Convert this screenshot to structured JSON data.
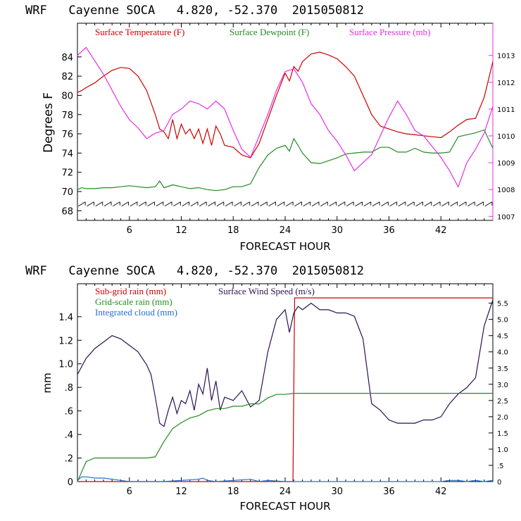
{
  "chart_data": [
    {
      "type": "line",
      "title": "WRF   Cayenne SOCA   4.820, -52.370  2015050812",
      "xlabel": "FORECAST HOUR",
      "ylabel": "Degrees F",
      "y2label": "",
      "xlim": [
        0,
        48
      ],
      "ylim": [
        67,
        87.5
      ],
      "y2lim": [
        1006.85,
        1014.2
      ],
      "xticks": [
        6,
        12,
        18,
        24,
        30,
        36,
        42
      ],
      "yticks": [
        68,
        70,
        72,
        74,
        76,
        78,
        80,
        82,
        84
      ],
      "y2ticks": [
        1007,
        1008,
        1009,
        1010,
        1011,
        1012,
        1013
      ],
      "legend": [
        "Surface Temperature (F)",
        "Surface Dewpoint (F)",
        "Surface Pressure (mb)"
      ],
      "wind_barbs": "row of wind barbs along 68.7 F",
      "colors": {
        "temperature": "#cc0000",
        "dewpoint": "#228b22",
        "pressure": "#e62ee6",
        "barbs": "#000000"
      },
      "series": [
        {
          "name": "Surface Temperature (F)",
          "axis": "left",
          "x": [
            0,
            0.5,
            1,
            2,
            3,
            4,
            5,
            6,
            7,
            8,
            9,
            9.5,
            10,
            10.5,
            11,
            11.5,
            12,
            12.5,
            13,
            13.5,
            14,
            14.5,
            15,
            15.5,
            16,
            16.5,
            17,
            18,
            19,
            20,
            21,
            22,
            23,
            24,
            24.5,
            25,
            25.5,
            26,
            27,
            28,
            29,
            30,
            31,
            32,
            33,
            34,
            35,
            36,
            37,
            38,
            39,
            40,
            41,
            42,
            43,
            44,
            45,
            46,
            47,
            48
          ],
          "values": [
            80.3,
            80.5,
            80.8,
            81.3,
            82,
            82.6,
            82.9,
            82.8,
            82,
            80.5,
            78,
            76.5,
            76.2,
            75.5,
            77.5,
            75.5,
            77,
            76,
            76.5,
            75.5,
            76.5,
            75,
            76.5,
            74.8,
            76.8,
            76,
            74.8,
            74.6,
            73.8,
            73.5,
            75,
            77.5,
            80,
            82.3,
            81.5,
            83,
            82.5,
            83.5,
            84.3,
            84.5,
            84.2,
            83.8,
            83,
            82,
            80,
            78,
            76.8,
            76.5,
            76.2,
            76,
            75.9,
            75.8,
            75.7,
            75.6,
            76.2,
            76.9,
            77.5,
            77.6,
            79.8,
            83.5
          ]
        },
        {
          "name": "Surface Dewpoint (F)",
          "axis": "left",
          "x": [
            0,
            0.5,
            1,
            2,
            3,
            4,
            5,
            6,
            7,
            8,
            9,
            9.5,
            10,
            11,
            12,
            13,
            14,
            15,
            16,
            17,
            18,
            19,
            20,
            21,
            22,
            23,
            24,
            24.5,
            25,
            25.5,
            26,
            27,
            28,
            29,
            30,
            31,
            32,
            33,
            34,
            35,
            36,
            37,
            38,
            39,
            40,
            41,
            42,
            43,
            44,
            45,
            46,
            47,
            48
          ],
          "values": [
            70.2,
            70.4,
            70.3,
            70.3,
            70.4,
            70.4,
            70.5,
            70.6,
            70.5,
            70.4,
            70.5,
            71.1,
            70.4,
            70.7,
            70.5,
            70.3,
            70.4,
            70.2,
            70.1,
            70.2,
            70.5,
            70.5,
            70.8,
            72.5,
            73.8,
            74.5,
            74.8,
            74.2,
            75.5,
            74.8,
            74,
            73,
            72.9,
            73.2,
            73.5,
            73.9,
            74,
            74.1,
            74.1,
            74.6,
            74.6,
            74.1,
            74.1,
            74.5,
            74.1,
            74,
            74,
            74.1,
            75.7,
            75.9,
            76.1,
            76.4,
            74.5
          ]
        },
        {
          "name": "Surface Pressure (mb)",
          "axis": "right",
          "x": [
            0,
            1,
            2,
            3,
            4,
            5,
            6,
            7,
            8,
            9,
            10,
            11,
            12,
            13,
            14,
            15,
            16,
            17,
            18,
            19,
            20,
            21,
            22,
            23,
            24,
            25,
            26,
            27,
            28,
            29,
            30,
            31,
            32,
            33,
            34,
            35,
            36,
            37,
            38,
            39,
            40,
            41,
            42,
            43,
            44,
            45,
            46,
            47,
            48
          ],
          "values": [
            1013,
            1013.3,
            1012.8,
            1012.3,
            1011.7,
            1011.1,
            1010.6,
            1010.3,
            1009.9,
            1010.1,
            1010.2,
            1010.8,
            1011,
            1011.3,
            1011.2,
            1011,
            1011.3,
            1011,
            1010.2,
            1009.5,
            1009.2,
            1010,
            1010.8,
            1011.7,
            1012.4,
            1012.5,
            1012,
            1011.2,
            1010.8,
            1010.2,
            1009.8,
            1009.3,
            1008.7,
            1009,
            1009.3,
            1010,
            1010.7,
            1011.3,
            1010.8,
            1010.2,
            1010,
            1009.6,
            1009.2,
            1008.7,
            1008.1,
            1009,
            1009.5,
            1010.1,
            1011.1
          ]
        }
      ]
    },
    {
      "type": "line",
      "title": "WRF   Cayenne SOCA   4.820, -52.370  2015050812",
      "xlabel": "FORECAST HOUR",
      "ylabel": "mm",
      "y2label": "",
      "xlim": [
        0,
        48
      ],
      "ylim": [
        0,
        1.68
      ],
      "y2lim": [
        0,
        6.1
      ],
      "xticks": [
        6,
        12,
        18,
        24,
        30,
        36,
        42
      ],
      "yticks": [
        0,
        0.2,
        0.4,
        0.6,
        0.8,
        1.0,
        1.2,
        1.4
      ],
      "yticklabels": [
        "0",
        ".2",
        ".4",
        ".6",
        ".8",
        "1.0",
        "1.2",
        "1.4"
      ],
      "y2ticks": [
        0,
        0.5,
        1,
        1.5,
        2,
        2.5,
        3,
        3.5,
        4,
        4.5,
        5,
        5.5
      ],
      "y2ticklabels": [
        "0",
        ".5",
        "1.0",
        "1.5",
        "2.0",
        "2.5",
        "3.0",
        "3.5",
        "4.0",
        "4.5",
        "5.0",
        "5.5"
      ],
      "legend": [
        "Sub-grid rain (mm)",
        "Surface Wind Speed (m/s)",
        "Grid-scale rain (mm)",
        "Integrated cloud (mm)"
      ],
      "colors": {
        "subgrid": "#cc0000",
        "wind": "#2a1150",
        "gridscale": "#228b22",
        "cloud": "#1e6fd9"
      },
      "series": [
        {
          "name": "Sub-grid rain (mm)",
          "axis": "left",
          "x": [
            0,
            24.9,
            25,
            25.1,
            48
          ],
          "values": [
            0,
            0,
            0.8,
            1.56,
            1.56
          ]
        },
        {
          "name": "Surface Wind Speed (m/s)",
          "axis": "right",
          "x": [
            0,
            1,
            2,
            3,
            4,
            5,
            6,
            7,
            8,
            8.5,
            9,
            9.5,
            10,
            10.5,
            11,
            11.5,
            12,
            12.5,
            13,
            13.5,
            14,
            14.5,
            15,
            15.5,
            16,
            16.5,
            17,
            18,
            19,
            20,
            21,
            22,
            23,
            24,
            24.5,
            25,
            25.5,
            26,
            27,
            28,
            29,
            30,
            31,
            32,
            33,
            34,
            35,
            36,
            37,
            38,
            39,
            40,
            41,
            42,
            43,
            44,
            45,
            46,
            47,
            48
          ],
          "values": [
            3.3,
            3.8,
            4.1,
            4.3,
            4.5,
            4.4,
            4.2,
            4,
            3.6,
            3.3,
            2.6,
            1.8,
            1.7,
            2.2,
            2.6,
            2.1,
            2.5,
            2.4,
            2.8,
            2.2,
            3,
            2.7,
            3.5,
            2.5,
            3.1,
            2.2,
            2.6,
            2.5,
            2.8,
            2.3,
            2.5,
            4,
            5,
            5.3,
            4.6,
            5.2,
            5.4,
            5.3,
            5.5,
            5.3,
            5.3,
            5.2,
            5.2,
            5.1,
            4.4,
            2.4,
            2.2,
            1.9,
            1.8,
            1.8,
            1.8,
            1.9,
            1.9,
            2,
            2.4,
            2.7,
            2.9,
            3.2,
            4.8,
            5.6
          ]
        },
        {
          "name": "Grid-scale rain (mm)",
          "axis": "left",
          "x": [
            0,
            1,
            2,
            3,
            4,
            5,
            6,
            7,
            8,
            9,
            10,
            11,
            12,
            13,
            14,
            15,
            16,
            17,
            18,
            19,
            20,
            21,
            22,
            23,
            24,
            25,
            26,
            27,
            28,
            29,
            30,
            31,
            32,
            33,
            34,
            35,
            36,
            37,
            38,
            39,
            40,
            41,
            42,
            43,
            44,
            45,
            46,
            47,
            48
          ],
          "values": [
            0,
            0.17,
            0.2,
            0.2,
            0.2,
            0.2,
            0.2,
            0.2,
            0.2,
            0.21,
            0.34,
            0.45,
            0.5,
            0.54,
            0.56,
            0.6,
            0.62,
            0.62,
            0.64,
            0.64,
            0.66,
            0.66,
            0.71,
            0.74,
            0.74,
            0.75,
            0.75,
            0.75,
            0.75,
            0.75,
            0.75,
            0.75,
            0.75,
            0.75,
            0.75,
            0.75,
            0.75,
            0.75,
            0.75,
            0.75,
            0.75,
            0.75,
            0.75,
            0.75,
            0.75,
            0.75,
            0.75,
            0.75,
            0.75
          ]
        },
        {
          "name": "Integrated cloud (mm)",
          "axis": "left",
          "x": [
            0,
            0.5,
            1,
            2,
            3,
            4,
            5,
            6,
            8,
            10,
            12,
            14,
            14.5,
            15,
            16,
            18,
            20,
            21,
            22,
            24,
            26,
            28,
            30,
            32,
            34,
            36,
            38,
            40,
            42,
            43,
            44,
            45,
            46,
            47,
            48
          ],
          "values": [
            0.01,
            0.04,
            0.04,
            0.03,
            0.03,
            0.02,
            0.01,
            0,
            0,
            0,
            0.01,
            0.02,
            0.03,
            0.01,
            0,
            0.01,
            0.02,
            0,
            0.01,
            0,
            0,
            0,
            0,
            0,
            0,
            0,
            0,
            0,
            0,
            0.01,
            0.01,
            0,
            0.01,
            0,
            0.01
          ]
        }
      ]
    }
  ]
}
